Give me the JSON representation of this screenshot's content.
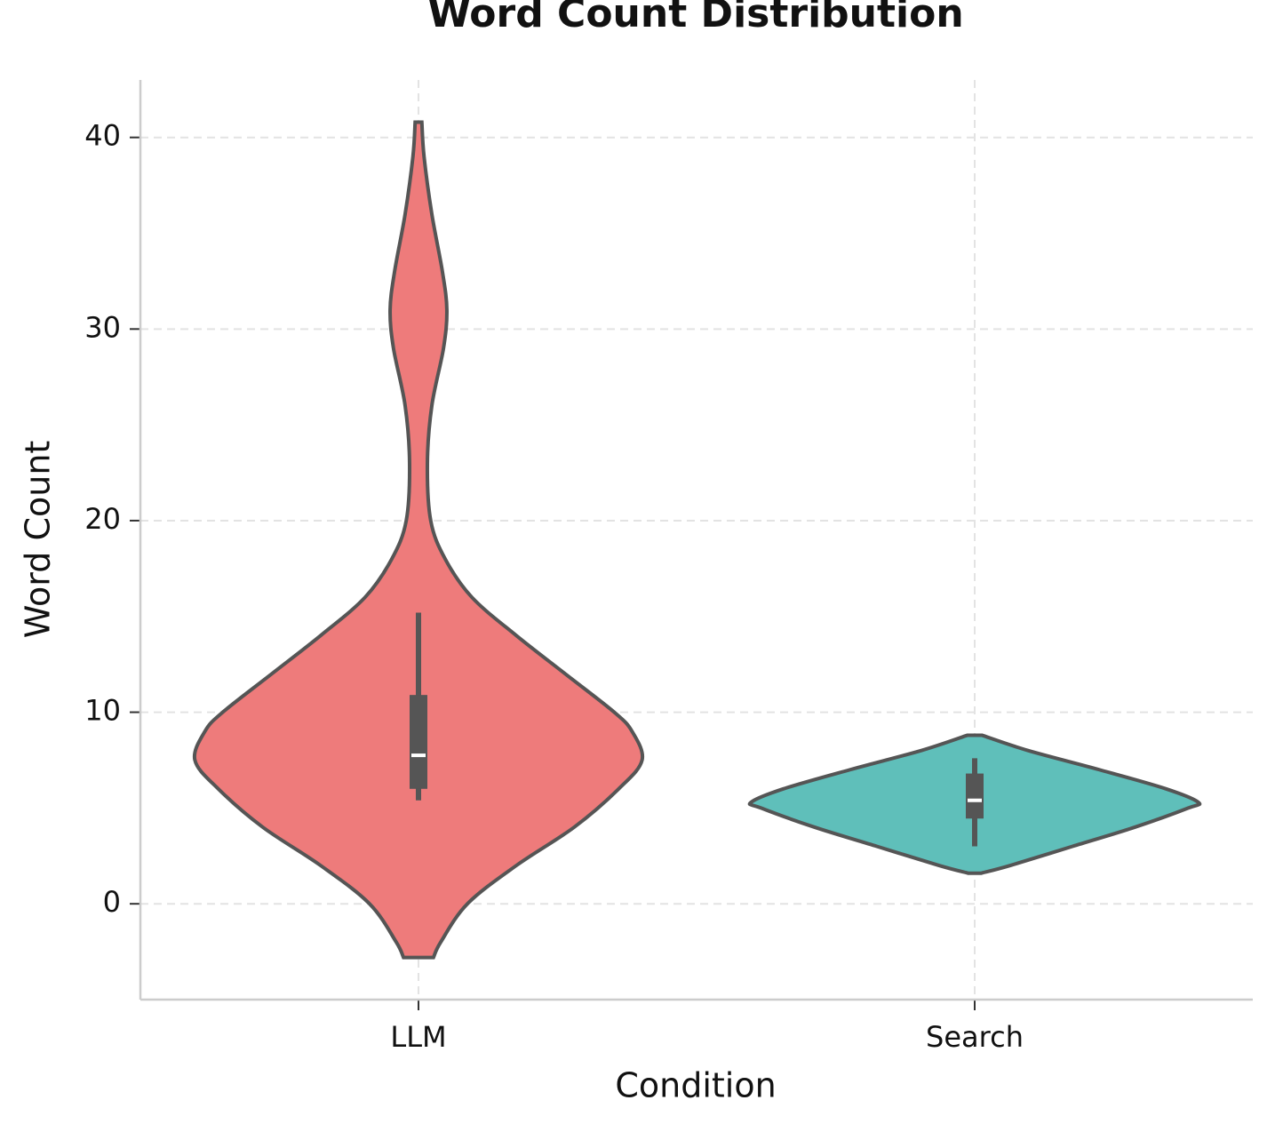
{
  "chart_data": {
    "type": "violin",
    "title": "Word Count Distribution",
    "xlabel": "Condition",
    "ylabel": "Word Count",
    "categories": [
      "LLM",
      "Search"
    ],
    "ylim": [
      -5,
      43
    ],
    "yticks": [
      0,
      10,
      20,
      30,
      40
    ],
    "grid": true,
    "series": [
      {
        "name": "LLM",
        "color": "#ee7b7b",
        "y": [
          -2.8,
          -2,
          0,
          2,
          4,
          6,
          7.5,
          9,
          10,
          12,
          14,
          16,
          18,
          20,
          23,
          26,
          29,
          31,
          33,
          36,
          39,
          40.8
        ],
        "half_width": [
          0.027,
          0.04,
          0.088,
          0.176,
          0.28,
          0.36,
          0.402,
          0.384,
          0.352,
          0.264,
          0.176,
          0.096,
          0.048,
          0.022,
          0.016,
          0.024,
          0.045,
          0.051,
          0.043,
          0.024,
          0.01,
          0.006
        ],
        "whisker_low": 5.4,
        "q1": 6.0,
        "median": 7.75,
        "q3": 10.9,
        "whisker_high": 15.2
      },
      {
        "name": "Search",
        "color": "#5fbfba",
        "y": [
          1.6,
          2,
          3,
          4,
          5,
          5.3,
          6,
          7,
          8,
          8.8
        ],
        "half_width": [
          0.012,
          0.064,
          0.176,
          0.288,
          0.384,
          0.402,
          0.344,
          0.224,
          0.096,
          0.013
        ],
        "whisker_low": 3.0,
        "q1": 4.45,
        "median": 5.4,
        "q3": 6.8,
        "whisker_high": 7.6
      }
    ]
  }
}
